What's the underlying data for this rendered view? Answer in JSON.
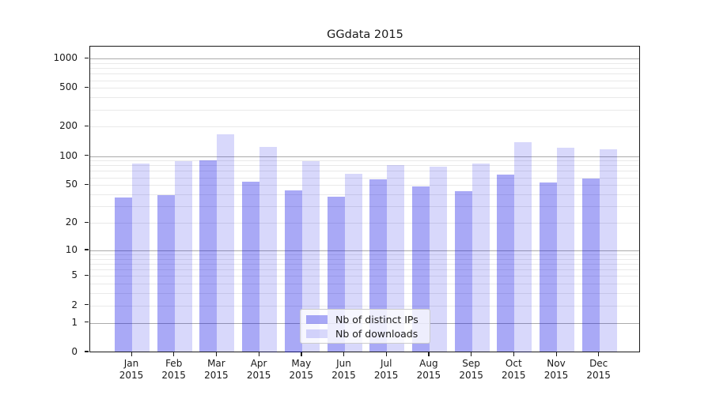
{
  "title": "GGdata 2015",
  "chart_data": {
    "type": "bar",
    "title": "GGdata 2015",
    "categories": [
      "Jan",
      "Feb",
      "Mar",
      "Apr",
      "May",
      "Jun",
      "Jul",
      "Aug",
      "Sep",
      "Oct",
      "Nov",
      "Dec"
    ],
    "category_year": "2015",
    "series": [
      {
        "name": "Nb of distinct IPs",
        "color": "rgba(10,10,230,0.35)",
        "values": [
          37,
          39,
          90,
          54,
          44,
          38,
          57,
          48,
          43,
          64,
          53,
          58
        ]
      },
      {
        "name": "Nb of downloads",
        "color": "rgba(10,10,230,0.16)",
        "values": [
          83,
          88,
          167,
          124,
          88,
          65,
          80,
          77,
          83,
          140,
          122,
          117
        ]
      }
    ],
    "yscale": "log10(value+1)",
    "ylim": [
      0,
      1320
    ],
    "y_tick_values": [
      0,
      1,
      2,
      5,
      10,
      20,
      50,
      100,
      200,
      500,
      1000
    ],
    "y_tick_labels": [
      "0",
      "1",
      "2",
      "5",
      "10",
      "20",
      "50",
      "100",
      "200",
      "500",
      "1000"
    ],
    "y_major_gridlines": [
      1,
      10,
      100,
      1000
    ],
    "y_minor_gridlines": [
      2,
      3,
      4,
      5,
      6,
      7,
      8,
      9,
      20,
      30,
      40,
      50,
      60,
      70,
      80,
      90,
      200,
      300,
      400,
      500,
      600,
      700,
      800,
      900
    ],
    "grid": true,
    "legend_position": "lower center",
    "colors": {
      "bar_ips": "rgba(10,10,230,0.35)",
      "bar_downloads": "rgba(10,10,230,0.16)",
      "grid_major": "#ababab",
      "grid_minor": "#e9e9e9",
      "axis": "#1a1a1a",
      "legend_border": "#cccccc"
    }
  },
  "legend": {
    "items": [
      {
        "label": "Nb of distinct IPs"
      },
      {
        "label": "Nb of downloads"
      }
    ]
  }
}
